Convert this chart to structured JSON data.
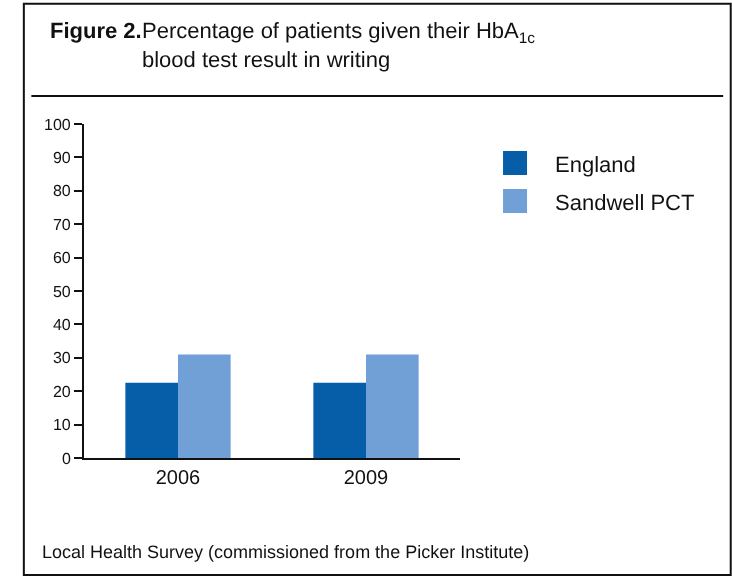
{
  "chart_data": {
    "type": "bar",
    "title": "Figure 2.",
    "subtitle": "Percentage of patients given their HbA$_{1c}$ blood test result in writing",
    "categories": [
      "2006",
      "2009"
    ],
    "series": [
      {
        "name": "England",
        "color": "#065ea9",
        "values": [
          22.5,
          22.5
        ]
      },
      {
        "name": "Sandwell PCT",
        "color": "#70a0d6",
        "values": [
          31,
          31
        ]
      }
    ],
    "ylim": [
      0,
      100
    ],
    "yticks": [
      0,
      10,
      20,
      30,
      40,
      50,
      60,
      70,
      80,
      90,
      100
    ],
    "legend": "top right",
    "annotations": [
      "Local Health Survey (commissioned from the Picker Institute)"
    ]
  }
}
